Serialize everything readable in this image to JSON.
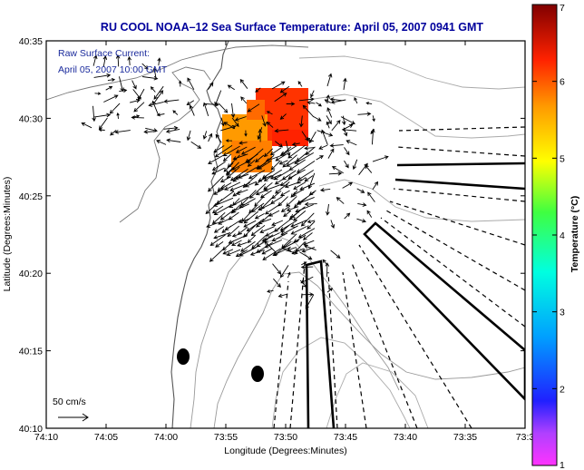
{
  "title": "RU COOL  NOAA–12  Sea Surface Temperature:  April 05, 2007 0941 GMT",
  "overlay": {
    "line1": "Raw Surface Current:",
    "line2": "April 05, 2007 10:00 GMT"
  },
  "scale_label": "50 cm/s",
  "axes": {
    "xlabel": "Longitude (Degrees:Minutes)",
    "ylabel": "Latitude (Degrees:Minutes)",
    "xticks": [
      "74:10",
      "74:05",
      "74:00",
      "73:55",
      "73:50",
      "73:45",
      "73:40",
      "73:35",
      "73:3"
    ],
    "yticks": [
      "40:35",
      "40:30",
      "40:25",
      "40:20",
      "40:15",
      "40:10"
    ]
  },
  "colorbar": {
    "label": "Temperature (°C)",
    "ticks": [
      "7",
      "6",
      "5",
      "4",
      "3",
      "2",
      "1"
    ],
    "range": [
      1,
      7
    ]
  },
  "colors": {
    "title": "#00009c",
    "overlay_text": "#1a2a9c",
    "sst_warm": "#ff8800",
    "sst_hot": "#ff3300"
  },
  "icons": [
    "scale-arrow-icon"
  ]
}
